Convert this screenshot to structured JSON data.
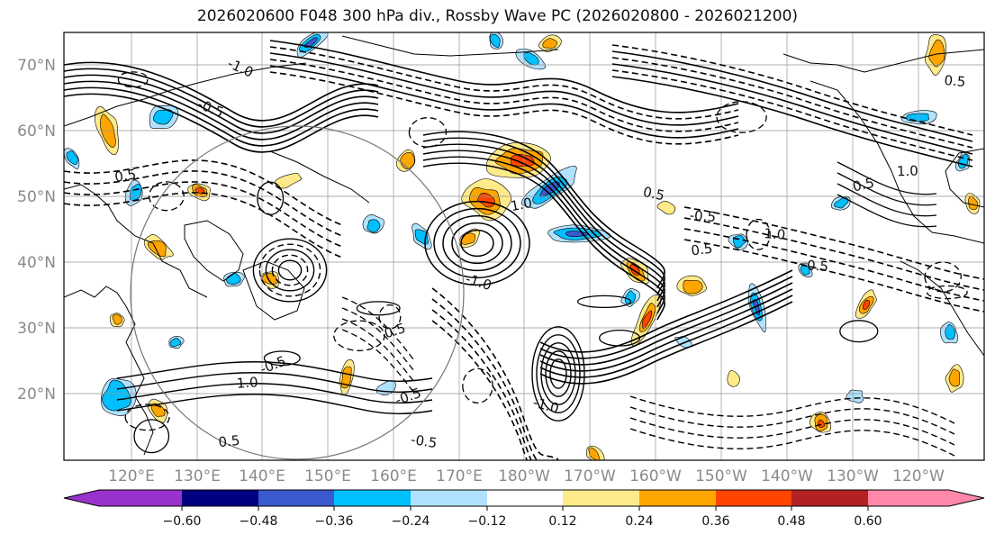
{
  "title": "2026020600 F048 300 hPa div., Rossby Wave PC (2026020800 - 2026021200)",
  "lat_labels": [
    "70°N",
    "60°N",
    "50°N",
    "40°N",
    "30°N",
    "20°N"
  ],
  "lon_labels": [
    "120°E",
    "130°E",
    "140°E",
    "150°E",
    "160°E",
    "170°E",
    "180°W",
    "170°W",
    "160°W",
    "150°W",
    "140°W",
    "130°W",
    "120°W"
  ],
  "colorbar": {
    "ticks": [
      "−0.60",
      "−0.48",
      "−0.36",
      "−0.24",
      "−0.12",
      "0.12",
      "0.24",
      "0.36",
      "0.48",
      "0.60"
    ],
    "colors": [
      "#9932cc",
      "#000080",
      "#3a5acd",
      "#00bfff",
      "#b0e2ff",
      "#ffffff",
      "#ffea8a",
      "#ffa500",
      "#ff4500",
      "#b22222",
      "#ff88aa"
    ]
  },
  "contour_labels": [
    "0.5",
    "-0.5",
    "-1.0",
    "1.0",
    "0.5",
    "-0.5",
    "1.0",
    "0.5",
    "-0.5",
    "-1.0",
    "0.5",
    "0.5",
    "-0.5",
    "1.0",
    "-0.5",
    "0.5",
    "-1.0",
    "1.0",
    "0.5",
    "-0.5"
  ]
}
